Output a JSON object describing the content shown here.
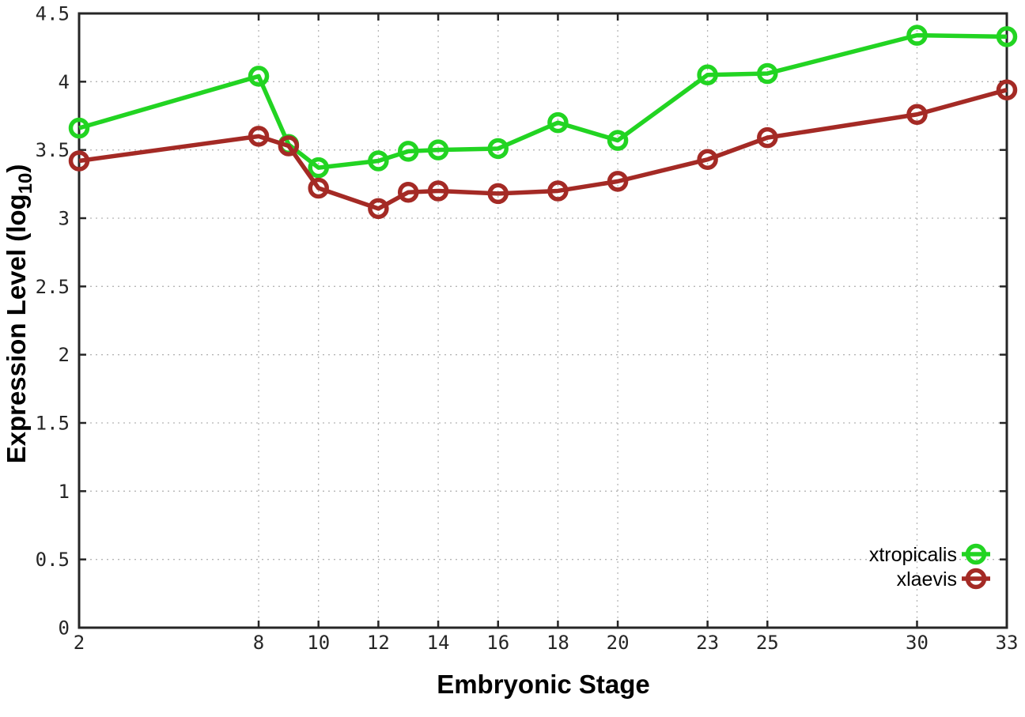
{
  "figure": {
    "xlabel": "Embryonic Stage",
    "ylabel_main": "Expression Level (log",
    "ylabel_sub": "10",
    "ylabel_suffix": ")"
  },
  "chart_data": {
    "type": "line",
    "x": [
      2,
      8,
      9,
      10,
      12,
      13,
      14,
      16,
      18,
      20,
      23,
      25,
      30,
      33
    ],
    "series": [
      {
        "name": "xtropicalis",
        "color": "#22d422",
        "values": [
          3.66,
          4.04,
          3.54,
          3.37,
          3.42,
          3.49,
          3.5,
          3.51,
          3.7,
          3.57,
          4.05,
          4.06,
          4.34,
          4.33
        ]
      },
      {
        "name": "xlaevis",
        "color": "#a42a25",
        "values": [
          3.42,
          3.6,
          3.53,
          3.22,
          3.07,
          3.19,
          3.2,
          3.18,
          3.2,
          3.27,
          3.43,
          3.59,
          3.76,
          3.94
        ]
      }
    ],
    "title": "",
    "xlabel": "Embryonic Stage",
    "ylabel": "Expression Level (log10)",
    "xlim": [
      2,
      33
    ],
    "ylim": [
      0,
      4.5
    ],
    "x_ticks": [
      2,
      8,
      10,
      12,
      14,
      16,
      18,
      20,
      23,
      25,
      30,
      33
    ],
    "y_ticks": [
      0,
      0.5,
      1,
      1.5,
      2,
      2.5,
      3,
      3.5,
      4,
      4.5
    ],
    "grid": true,
    "grid_style": "dotted",
    "marker": "open-circle",
    "legend_position": "inside-bottom-right"
  },
  "colors": {
    "background": "#ffffff",
    "border": "#262626",
    "grid": "#b5b5b5",
    "tick_text": "#262626",
    "title_text": "#000000"
  }
}
